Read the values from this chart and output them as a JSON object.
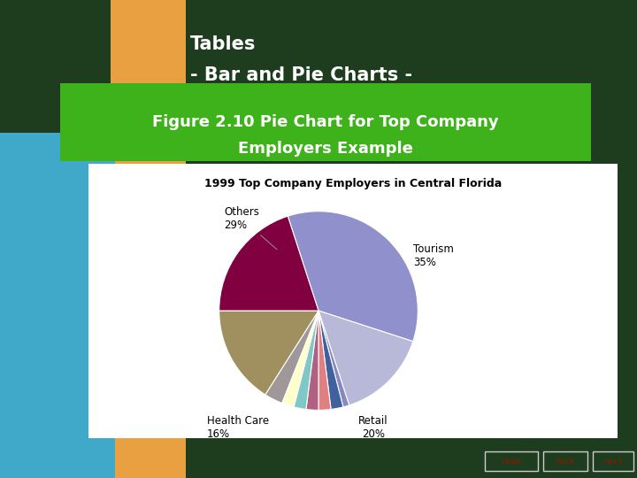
{
  "bg_color": "#1e3d1e",
  "left_bar_orange": "#e8a040",
  "left_bar_cyan": "#40a8c8",
  "header_text_line1": "Tables",
  "header_text_line2": "- Bar and Pie Charts -",
  "header_text_color": "#ffffff",
  "subtitle_bg": "#3db21a",
  "subtitle_text_line1": "Figure 2.10 Pie Chart for Top Company",
  "subtitle_text_line2": "Employers Example",
  "subtitle_text_color": "#ffffff",
  "chart_bg": "#ffffff",
  "chart_title": "1999 Top Company Employers in Central Florida",
  "pie_sizes": [
    35,
    15,
    1,
    2,
    2,
    2,
    2,
    2,
    3,
    16,
    20
  ],
  "pie_colors": [
    "#9090cc",
    "#b8b8d8",
    "#8888c0",
    "#4060a0",
    "#e08080",
    "#b06080",
    "#80c8c8",
    "#ffffcc",
    "#a09898",
    "#a09060",
    "#800040"
  ],
  "nav_buttons": [
    "home",
    "back",
    "next"
  ],
  "nav_text_color": "#8b1a00",
  "nav_border_color": "#cccccc",
  "nav_bg": "#1e3d1e",
  "startangle": 108,
  "label_tourism": "Tourism\n35%",
  "label_retail": "Retail\n20%",
  "label_healthcare": "Health Care\n16%",
  "label_others": "Others\n29%"
}
